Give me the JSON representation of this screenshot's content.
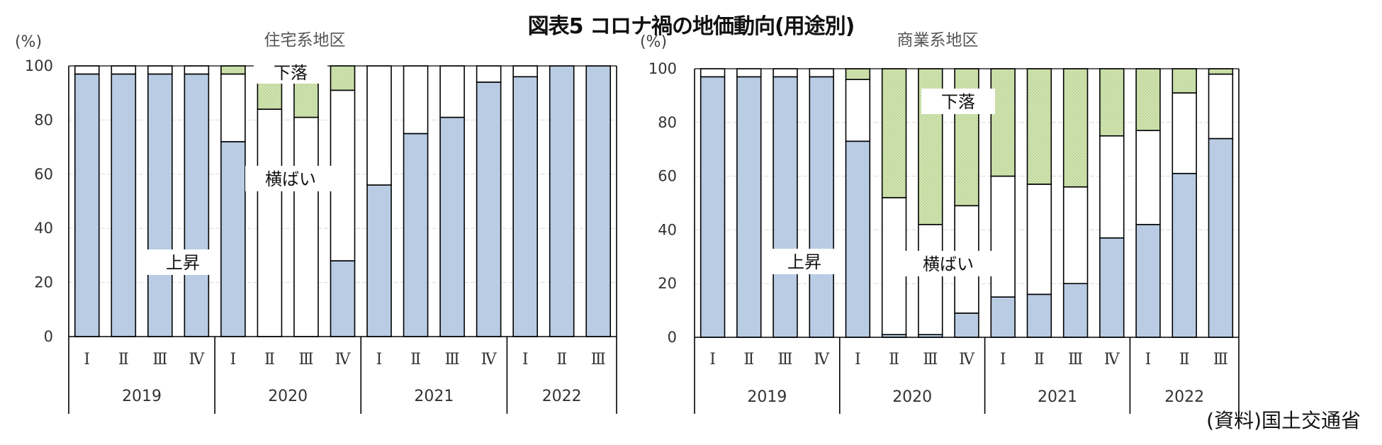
{
  "title": "図表5 コロナ禍の地価動向(用途別)",
  "source": "(資料)国土交通省",
  "colors": {
    "rise": "#b9cce4",
    "flat": "#ffffff",
    "fall": "#d4e6b4",
    "outline": "#000000",
    "grid": "#d9d9d9"
  },
  "chart_data": [
    {
      "type": "bar",
      "stacked": true,
      "title": "住宅系地区",
      "unit_label": "(%)",
      "ylim": [
        0,
        100
      ],
      "yticks": [
        0,
        20,
        40,
        60,
        80,
        100
      ],
      "grid": true,
      "categories": [
        "I",
        "II",
        "III",
        "IV",
        "I",
        "II",
        "III",
        "IV",
        "I",
        "II",
        "III",
        "IV",
        "I",
        "II",
        "III"
      ],
      "years": [
        {
          "label": "2019",
          "count": 4
        },
        {
          "label": "2020",
          "count": 4
        },
        {
          "label": "2021",
          "count": 4
        },
        {
          "label": "2022",
          "count": 3
        }
      ],
      "series": [
        {
          "name": "上昇",
          "values": [
            97,
            97,
            97,
            97,
            72,
            0,
            0,
            28,
            56,
            75,
            81,
            94,
            96,
            100,
            100
          ]
        },
        {
          "name": "横ばい",
          "values": [
            3,
            3,
            3,
            3,
            25,
            84,
            81,
            63,
            44,
            25,
            19,
            6,
            4,
            0,
            0
          ]
        },
        {
          "name": "下落",
          "values": [
            0,
            0,
            0,
            0,
            3,
            16,
            19,
            9,
            0,
            0,
            0,
            0,
            0,
            0,
            0
          ]
        }
      ]
    },
    {
      "type": "bar",
      "stacked": true,
      "title": "商業系地区",
      "unit_label": "(%)",
      "ylim": [
        0,
        100
      ],
      "yticks": [
        0,
        20,
        40,
        60,
        80,
        100
      ],
      "grid": true,
      "categories": [
        "I",
        "II",
        "III",
        "IV",
        "I",
        "II",
        "III",
        "IV",
        "I",
        "II",
        "III",
        "IV",
        "I",
        "II",
        "III"
      ],
      "years": [
        {
          "label": "2019",
          "count": 4
        },
        {
          "label": "2020",
          "count": 4
        },
        {
          "label": "2021",
          "count": 4
        },
        {
          "label": "2022",
          "count": 3
        }
      ],
      "series": [
        {
          "name": "上昇",
          "values": [
            97,
            97,
            97,
            97,
            73,
            1,
            1,
            9,
            15,
            16,
            20,
            37,
            42,
            61,
            74
          ]
        },
        {
          "name": "横ばい",
          "values": [
            3,
            3,
            3,
            3,
            23,
            51,
            41,
            40,
            45,
            41,
            36,
            38,
            35,
            30,
            24
          ]
        },
        {
          "name": "下落",
          "values": [
            0,
            0,
            0,
            0,
            4,
            48,
            58,
            51,
            40,
            43,
            44,
            25,
            23,
            9,
            2
          ]
        }
      ]
    }
  ]
}
